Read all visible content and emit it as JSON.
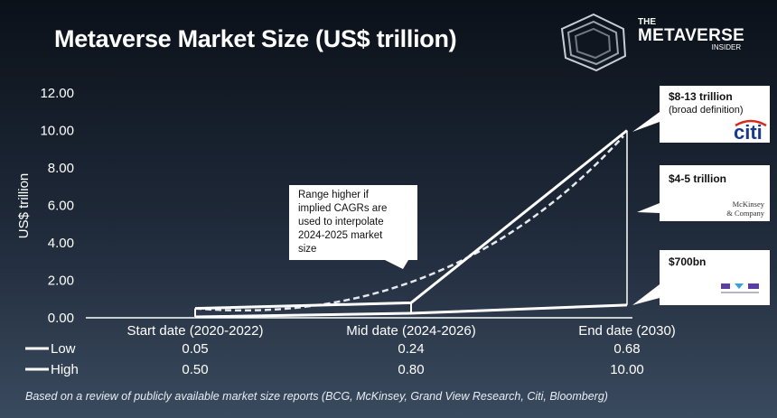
{
  "header": {
    "title": "Metaverse Market Size (US$ trillion)",
    "logo": {
      "the": "THE",
      "name": "METAVERSE",
      "sub": "INSIDER"
    }
  },
  "chart_data": {
    "type": "line",
    "title": "Metaverse Market Size (US$ trillion)",
    "ylabel": "US$ trillion",
    "ylim": [
      0,
      12
    ],
    "yticks": [
      "0.00",
      "2.00",
      "4.00",
      "6.00",
      "8.00",
      "10.00",
      "12.00"
    ],
    "categories": [
      "Start date (2020-2022)",
      "Mid date (2024-2026)",
      "End date (2030)"
    ],
    "series": [
      {
        "name": "Low",
        "values": [
          0.05,
          0.24,
          0.68
        ],
        "labels": [
          "0.05",
          "0.24",
          "0.68"
        ]
      },
      {
        "name": "High",
        "values": [
          0.5,
          0.8,
          10.0
        ],
        "labels": [
          "0.50",
          "0.80",
          "10.00"
        ]
      }
    ],
    "interpolated_high": [
      0.5,
      2.3,
      9.7
    ],
    "annotations": {
      "range_note": [
        "Range higher if",
        "implied CAGRs are",
        "used to interpolate",
        "2024-2025 market",
        "size"
      ],
      "citi": {
        "value": "$8-13 trillion",
        "note": "(broad definition)",
        "logo": "citi"
      },
      "mckinsey": {
        "value": "$4-5 trillion",
        "logo_line1": "McKinsey",
        "logo_line2": "& Company"
      },
      "bloomberg": {
        "value": "$700bn"
      }
    }
  },
  "footnote": "Based on a review of publicly available market size reports (BCG, McKinsey, Grand View Research, Citi, Bloomberg)"
}
